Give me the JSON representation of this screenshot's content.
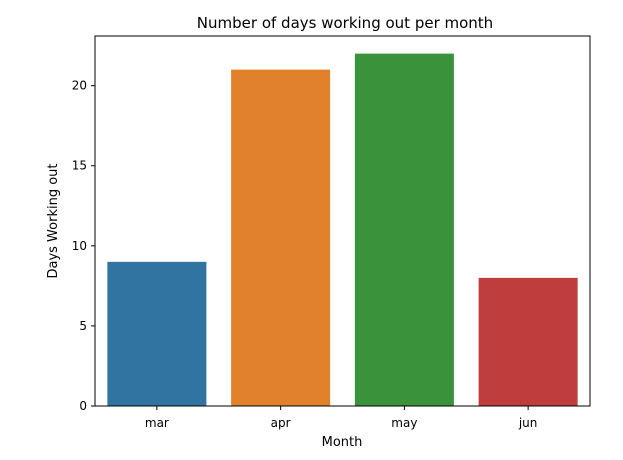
{
  "chart_data": {
    "type": "bar",
    "title": "Number of days working out per month",
    "xlabel": "Month",
    "ylabel": "Days Working out",
    "categories": [
      "mar",
      "apr",
      "may",
      "jun"
    ],
    "values": [
      9,
      21,
      22,
      8
    ],
    "colors": [
      "#3274a1",
      "#e1812c",
      "#3a923a",
      "#c03d3e"
    ],
    "ylim": [
      0,
      23.1
    ],
    "yticks": [
      0,
      5,
      10,
      15,
      20
    ],
    "grid": false,
    "legend": false
  }
}
